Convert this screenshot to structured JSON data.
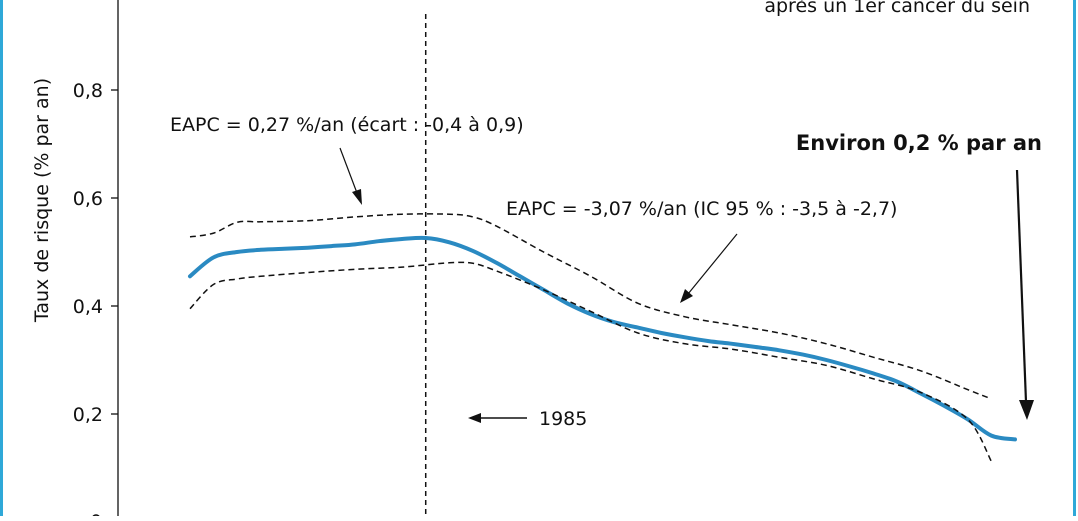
{
  "chart_data": {
    "type": "line",
    "title_partial": "après un 1er cancer du sein",
    "ylabel": "Taux de risque (% par an)",
    "yticks": [
      "0,2",
      "0,4",
      "0,6",
      "0,8"
    ],
    "ytick_values": [
      0.2,
      0.4,
      0.6,
      0.8
    ],
    "bottom_tick_partial": "0",
    "ylim": [
      0,
      1.0
    ],
    "xlim": [
      1973,
      2012
    ],
    "grid": false,
    "legend": "none",
    "line_color": "#2a8ac2",
    "frame_color": "#2fa8d8",
    "series": [
      {
        "role": "estimate",
        "x": [
          1975,
          1976,
          1977,
          1978,
          1979,
          1980,
          1981,
          1982,
          1983,
          1984,
          1985,
          1986,
          1987,
          1988,
          1989,
          1990,
          1991,
          1992,
          1993,
          1994,
          1995,
          1996,
          1997,
          1998,
          1999,
          2000,
          2001,
          2002,
          2003,
          2004,
          2005,
          2006,
          2007,
          2008,
          2009,
          2010
        ],
        "y": [
          0.455,
          0.49,
          0.5,
          0.504,
          0.506,
          0.508,
          0.511,
          0.514,
          0.52,
          0.524,
          0.526,
          0.518,
          0.502,
          0.48,
          0.455,
          0.43,
          0.405,
          0.385,
          0.37,
          0.36,
          0.35,
          0.342,
          0.335,
          0.33,
          0.324,
          0.318,
          0.31,
          0.3,
          0.288,
          0.275,
          0.26,
          0.238,
          0.215,
          0.19,
          0.16,
          0.153
        ]
      },
      {
        "role": "upper-bound",
        "x": [
          1975,
          1976,
          1977,
          1978,
          1980,
          1982,
          1984,
          1986,
          1987,
          1988,
          1990,
          1992,
          1994,
          1996,
          1998,
          2000,
          2002,
          2004,
          2006,
          2008,
          2009
        ],
        "y": [
          0.528,
          0.535,
          0.555,
          0.556,
          0.558,
          0.565,
          0.57,
          0.57,
          0.565,
          0.548,
          0.5,
          0.455,
          0.405,
          0.38,
          0.365,
          0.35,
          0.33,
          0.305,
          0.28,
          0.245,
          0.228
        ]
      },
      {
        "role": "lower-bound",
        "x": [
          1975,
          1976,
          1977,
          1978,
          1980,
          1982,
          1984,
          1986,
          1987,
          1988,
          1990,
          1992,
          1994,
          1996,
          1998,
          2000,
          2002,
          2004,
          2006,
          2008,
          2009
        ],
        "y": [
          0.395,
          0.44,
          0.45,
          0.455,
          0.462,
          0.468,
          0.472,
          0.48,
          0.479,
          0.465,
          0.43,
          0.39,
          0.35,
          0.33,
          0.32,
          0.305,
          0.29,
          0.265,
          0.24,
          0.19,
          0.112
        ]
      }
    ],
    "reference_line": {
      "x": 1985,
      "label": "1985"
    },
    "annotations": [
      {
        "text": "EAPC = 0,27 %/an (écart : -0,4 à 0,9)",
        "bold": false
      },
      {
        "text": "EAPC = -3,07 %/an (IC 95 % : -3,5 à -2,7)",
        "bold": false
      },
      {
        "text": "Environ 0,2 % par an",
        "bold": true
      }
    ]
  }
}
